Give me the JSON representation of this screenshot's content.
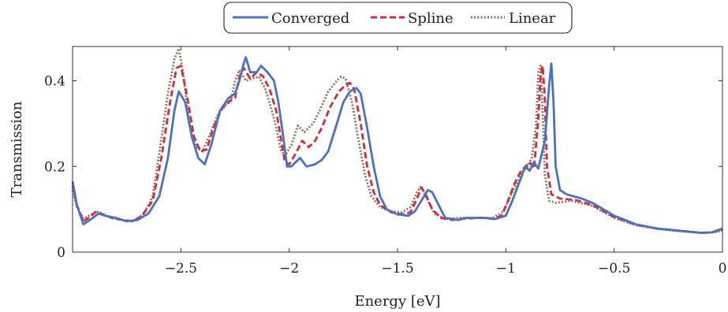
{
  "chart_data": {
    "type": "line",
    "title": "",
    "xlabel": "Energy [eV]",
    "ylabel": "Transmission",
    "xlim": [
      -3.0,
      0.0
    ],
    "ylim": [
      0.0,
      0.48
    ],
    "xticks": [
      -2.5,
      -2,
      -1.5,
      -1,
      -0.5,
      0
    ],
    "xtick_labels": [
      "−2.5",
      "−2",
      "−1.5",
      "−1",
      "−0.5",
      "0"
    ],
    "yticks": [
      0,
      0.2,
      0.4
    ],
    "ytick_labels": [
      "0",
      "0.2",
      "0.4"
    ],
    "grid": false,
    "legend": {
      "placement": "top-center",
      "orientation": "horizontal"
    },
    "series": [
      {
        "name": "Converged",
        "color": "#4a72c0",
        "style": "solid",
        "points": [
          [
            -3.0,
            0.165
          ],
          [
            -2.98,
            0.11
          ],
          [
            -2.95,
            0.065
          ],
          [
            -2.92,
            0.075
          ],
          [
            -2.88,
            0.09
          ],
          [
            -2.85,
            0.085
          ],
          [
            -2.8,
            0.08
          ],
          [
            -2.75,
            0.072
          ],
          [
            -2.7,
            0.075
          ],
          [
            -2.65,
            0.09
          ],
          [
            -2.6,
            0.13
          ],
          [
            -2.56,
            0.22
          ],
          [
            -2.53,
            0.33
          ],
          [
            -2.51,
            0.375
          ],
          [
            -2.48,
            0.35
          ],
          [
            -2.45,
            0.27
          ],
          [
            -2.42,
            0.22
          ],
          [
            -2.39,
            0.205
          ],
          [
            -2.36,
            0.25
          ],
          [
            -2.32,
            0.33
          ],
          [
            -2.28,
            0.36
          ],
          [
            -2.25,
            0.37
          ],
          [
            -2.23,
            0.4
          ],
          [
            -2.21,
            0.44
          ],
          [
            -2.2,
            0.455
          ],
          [
            -2.18,
            0.42
          ],
          [
            -2.15,
            0.42
          ],
          [
            -2.13,
            0.435
          ],
          [
            -2.1,
            0.42
          ],
          [
            -2.07,
            0.4
          ],
          [
            -2.05,
            0.35
          ],
          [
            -2.03,
            0.28
          ],
          [
            -2.01,
            0.2
          ],
          [
            -1.99,
            0.2
          ],
          [
            -1.97,
            0.21
          ],
          [
            -1.95,
            0.22
          ],
          [
            -1.92,
            0.2
          ],
          [
            -1.88,
            0.205
          ],
          [
            -1.85,
            0.215
          ],
          [
            -1.82,
            0.235
          ],
          [
            -1.78,
            0.3
          ],
          [
            -1.75,
            0.35
          ],
          [
            -1.72,
            0.375
          ],
          [
            -1.69,
            0.383
          ],
          [
            -1.67,
            0.37
          ],
          [
            -1.64,
            0.29
          ],
          [
            -1.61,
            0.2
          ],
          [
            -1.58,
            0.13
          ],
          [
            -1.55,
            0.1
          ],
          [
            -1.5,
            0.088
          ],
          [
            -1.45,
            0.085
          ],
          [
            -1.42,
            0.095
          ],
          [
            -1.39,
            0.12
          ],
          [
            -1.36,
            0.145
          ],
          [
            -1.34,
            0.14
          ],
          [
            -1.31,
            0.11
          ],
          [
            -1.28,
            0.08
          ],
          [
            -1.22,
            0.075
          ],
          [
            -1.18,
            0.08
          ],
          [
            -1.1,
            0.08
          ],
          [
            -1.05,
            0.077
          ],
          [
            -1.0,
            0.085
          ],
          [
            -0.97,
            0.12
          ],
          [
            -0.94,
            0.16
          ],
          [
            -0.91,
            0.2
          ],
          [
            -0.89,
            0.19
          ],
          [
            -0.87,
            0.21
          ],
          [
            -0.85,
            0.195
          ],
          [
            -0.82,
            0.26
          ],
          [
            -0.8,
            0.39
          ],
          [
            -0.79,
            0.44
          ],
          [
            -0.78,
            0.35
          ],
          [
            -0.77,
            0.2
          ],
          [
            -0.75,
            0.145
          ],
          [
            -0.72,
            0.135
          ],
          [
            -0.65,
            0.125
          ],
          [
            -0.6,
            0.115
          ],
          [
            -0.5,
            0.085
          ],
          [
            -0.4,
            0.065
          ],
          [
            -0.3,
            0.055
          ],
          [
            -0.2,
            0.05
          ],
          [
            -0.1,
            0.045
          ],
          [
            -0.05,
            0.046
          ],
          [
            0.0,
            0.055
          ]
        ]
      },
      {
        "name": "Spline",
        "color": "#cc2f3d",
        "style": "dashed",
        "points": [
          [
            -3.0,
            0.155
          ],
          [
            -2.98,
            0.11
          ],
          [
            -2.95,
            0.072
          ],
          [
            -2.92,
            0.082
          ],
          [
            -2.89,
            0.095
          ],
          [
            -2.86,
            0.088
          ],
          [
            -2.82,
            0.08
          ],
          [
            -2.77,
            0.075
          ],
          [
            -2.72,
            0.072
          ],
          [
            -2.68,
            0.085
          ],
          [
            -2.63,
            0.12
          ],
          [
            -2.59,
            0.22
          ],
          [
            -2.55,
            0.35
          ],
          [
            -2.52,
            0.43
          ],
          [
            -2.5,
            0.435
          ],
          [
            -2.47,
            0.36
          ],
          [
            -2.44,
            0.27
          ],
          [
            -2.41,
            0.235
          ],
          [
            -2.38,
            0.24
          ],
          [
            -2.35,
            0.29
          ],
          [
            -2.31,
            0.335
          ],
          [
            -2.27,
            0.355
          ],
          [
            -2.25,
            0.36
          ],
          [
            -2.23,
            0.41
          ],
          [
            -2.21,
            0.43
          ],
          [
            -2.18,
            0.405
          ],
          [
            -2.15,
            0.42
          ],
          [
            -2.12,
            0.41
          ],
          [
            -2.09,
            0.38
          ],
          [
            -2.06,
            0.33
          ],
          [
            -2.04,
            0.27
          ],
          [
            -2.02,
            0.21
          ],
          [
            -2.0,
            0.205
          ],
          [
            -1.97,
            0.23
          ],
          [
            -1.94,
            0.26
          ],
          [
            -1.91,
            0.245
          ],
          [
            -1.88,
            0.26
          ],
          [
            -1.85,
            0.29
          ],
          [
            -1.81,
            0.34
          ],
          [
            -1.77,
            0.375
          ],
          [
            -1.74,
            0.39
          ],
          [
            -1.72,
            0.395
          ],
          [
            -1.7,
            0.38
          ],
          [
            -1.67,
            0.3
          ],
          [
            -1.64,
            0.2
          ],
          [
            -1.61,
            0.14
          ],
          [
            -1.58,
            0.11
          ],
          [
            -1.53,
            0.093
          ],
          [
            -1.48,
            0.088
          ],
          [
            -1.44,
            0.093
          ],
          [
            -1.41,
            0.125
          ],
          [
            -1.39,
            0.15
          ],
          [
            -1.37,
            0.135
          ],
          [
            -1.34,
            0.1
          ],
          [
            -1.3,
            0.08
          ],
          [
            -1.25,
            0.075
          ],
          [
            -1.2,
            0.078
          ],
          [
            -1.12,
            0.08
          ],
          [
            -1.06,
            0.078
          ],
          [
            -1.02,
            0.085
          ],
          [
            -0.99,
            0.12
          ],
          [
            -0.96,
            0.16
          ],
          [
            -0.93,
            0.19
          ],
          [
            -0.91,
            0.2
          ],
          [
            -0.89,
            0.21
          ],
          [
            -0.87,
            0.195
          ],
          [
            -0.85,
            0.31
          ],
          [
            -0.84,
            0.41
          ],
          [
            -0.83,
            0.435
          ],
          [
            -0.82,
            0.36
          ],
          [
            -0.81,
            0.2
          ],
          [
            -0.79,
            0.135
          ],
          [
            -0.75,
            0.125
          ],
          [
            -0.68,
            0.122
          ],
          [
            -0.6,
            0.11
          ],
          [
            -0.5,
            0.082
          ],
          [
            -0.4,
            0.064
          ],
          [
            -0.3,
            0.055
          ],
          [
            -0.2,
            0.05
          ],
          [
            -0.1,
            0.045
          ],
          [
            -0.05,
            0.046
          ],
          [
            0.0,
            0.052
          ]
        ]
      },
      {
        "name": "Linear",
        "color": "#8c7361",
        "style": "dotted",
        "points": [
          [
            -3.0,
            0.145
          ],
          [
            -2.98,
            0.105
          ],
          [
            -2.95,
            0.078
          ],
          [
            -2.92,
            0.086
          ],
          [
            -2.89,
            0.095
          ],
          [
            -2.86,
            0.088
          ],
          [
            -2.82,
            0.08
          ],
          [
            -2.77,
            0.075
          ],
          [
            -2.72,
            0.072
          ],
          [
            -2.67,
            0.09
          ],
          [
            -2.63,
            0.13
          ],
          [
            -2.6,
            0.23
          ],
          [
            -2.56,
            0.37
          ],
          [
            -2.53,
            0.45
          ],
          [
            -2.51,
            0.475
          ],
          [
            -2.49,
            0.42
          ],
          [
            -2.46,
            0.3
          ],
          [
            -2.43,
            0.245
          ],
          [
            -2.4,
            0.235
          ],
          [
            -2.37,
            0.27
          ],
          [
            -2.33,
            0.32
          ],
          [
            -2.29,
            0.345
          ],
          [
            -2.27,
            0.35
          ],
          [
            -2.25,
            0.4
          ],
          [
            -2.23,
            0.425
          ],
          [
            -2.2,
            0.4
          ],
          [
            -2.17,
            0.405
          ],
          [
            -2.14,
            0.41
          ],
          [
            -2.11,
            0.38
          ],
          [
            -2.08,
            0.33
          ],
          [
            -2.06,
            0.29
          ],
          [
            -2.04,
            0.24
          ],
          [
            -2.02,
            0.225
          ],
          [
            -1.99,
            0.25
          ],
          [
            -1.96,
            0.295
          ],
          [
            -1.93,
            0.28
          ],
          [
            -1.89,
            0.3
          ],
          [
            -1.86,
            0.33
          ],
          [
            -1.82,
            0.375
          ],
          [
            -1.78,
            0.4
          ],
          [
            -1.76,
            0.41
          ],
          [
            -1.74,
            0.405
          ],
          [
            -1.71,
            0.35
          ],
          [
            -1.68,
            0.26
          ],
          [
            -1.65,
            0.18
          ],
          [
            -1.62,
            0.13
          ],
          [
            -1.58,
            0.105
          ],
          [
            -1.53,
            0.095
          ],
          [
            -1.48,
            0.093
          ],
          [
            -1.44,
            0.105
          ],
          [
            -1.41,
            0.14
          ],
          [
            -1.39,
            0.155
          ],
          [
            -1.37,
            0.13
          ],
          [
            -1.33,
            0.09
          ],
          [
            -1.28,
            0.078
          ],
          [
            -1.2,
            0.08
          ],
          [
            -1.12,
            0.08
          ],
          [
            -1.06,
            0.08
          ],
          [
            -1.01,
            0.095
          ],
          [
            -0.98,
            0.13
          ],
          [
            -0.95,
            0.16
          ],
          [
            -0.92,
            0.19
          ],
          [
            -0.9,
            0.2
          ],
          [
            -0.88,
            0.22
          ],
          [
            -0.86,
            0.3
          ],
          [
            -0.85,
            0.42
          ],
          [
            -0.84,
            0.435
          ],
          [
            -0.83,
            0.33
          ],
          [
            -0.82,
            0.18
          ],
          [
            -0.8,
            0.12
          ],
          [
            -0.77,
            0.115
          ],
          [
            -0.7,
            0.12
          ],
          [
            -0.6,
            0.108
          ],
          [
            -0.5,
            0.08
          ],
          [
            -0.4,
            0.063
          ],
          [
            -0.3,
            0.054
          ],
          [
            -0.2,
            0.049
          ],
          [
            -0.1,
            0.045
          ],
          [
            -0.05,
            0.046
          ],
          [
            0.0,
            0.05
          ]
        ]
      }
    ]
  }
}
